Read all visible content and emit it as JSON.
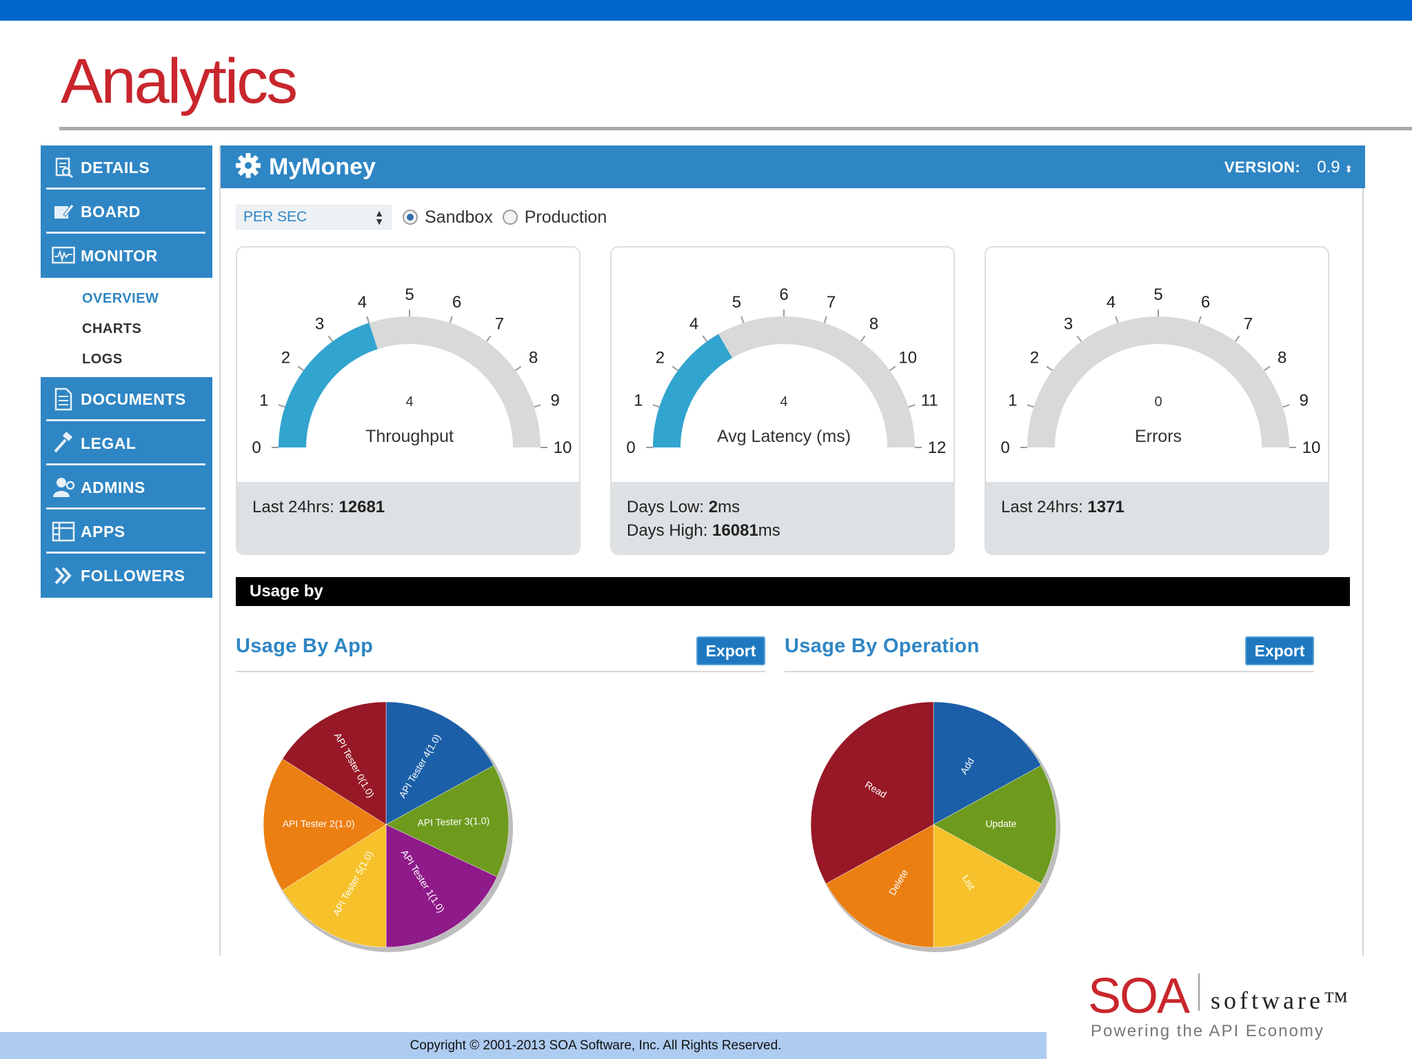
{
  "slide": {
    "title": "Analytics"
  },
  "sidebar": {
    "items": [
      {
        "label": "DETAILS",
        "icon": "details-icon"
      },
      {
        "label": "BOARD",
        "icon": "board-icon"
      },
      {
        "label": "MONITOR",
        "icon": "monitor-icon"
      },
      {
        "label": "DOCUMENTS",
        "icon": "documents-icon"
      },
      {
        "label": "LEGAL",
        "icon": "gavel-icon"
      },
      {
        "label": "ADMINS",
        "icon": "admins-icon"
      },
      {
        "label": "APPS",
        "icon": "apps-icon"
      },
      {
        "label": "FOLLOWERS",
        "icon": "chevrons-icon"
      }
    ],
    "subitems": [
      {
        "label": "OVERVIEW",
        "active": true
      },
      {
        "label": "CHARTS",
        "active": false
      },
      {
        "label": "LOGS",
        "active": false
      }
    ]
  },
  "header": {
    "app_name": "MyMoney",
    "version_label": "VERSION:",
    "version_value": "0.9"
  },
  "controls": {
    "rate_select": "PER SEC",
    "env_options": [
      {
        "label": "Sandbox",
        "selected": true
      },
      {
        "label": "Production",
        "selected": false
      }
    ]
  },
  "gauges": [
    {
      "label": "Throughput",
      "value": 4,
      "value_text": "4",
      "ticks": [
        "0",
        "1",
        "2",
        "3",
        "4",
        "5",
        "6",
        "7",
        "8",
        "9",
        "10"
      ],
      "max": 10,
      "footer": [
        {
          "prefix": "Last 24hrs: ",
          "bold": "12681",
          "suffix": ""
        }
      ]
    },
    {
      "label": "Avg Latency (ms)",
      "value": 4,
      "value_text": "4",
      "ticks": [
        "0",
        "1",
        "2",
        "4",
        "5",
        "6",
        "7",
        "8",
        "10",
        "11",
        "12"
      ],
      "max": 12,
      "footer": [
        {
          "prefix": "Days Low: ",
          "bold": "2",
          "suffix": "ms"
        },
        {
          "prefix": "Days High: ",
          "bold": "16081",
          "suffix": "ms"
        }
      ]
    },
    {
      "label": "Errors",
      "value": 0,
      "value_text": "0",
      "ticks": [
        "0",
        "1",
        "2",
        "3",
        "4",
        "5",
        "6",
        "7",
        "8",
        "9",
        "10"
      ],
      "max": 10,
      "footer": [
        {
          "prefix": "Last 24hrs: ",
          "bold": "1371",
          "suffix": ""
        }
      ]
    }
  ],
  "usage": {
    "bar_label": "Usage by",
    "by_app_title": "Usage By App",
    "by_operation_title": "Usage By Operation",
    "export_label": "Export"
  },
  "chart_data": [
    {
      "type": "pie",
      "title": "Usage By App",
      "categories": [
        "API Tester 4(1.0)",
        "API Tester 3(1.0)",
        "API Tester 1(1.0)",
        "API Tester 5(1.0)",
        "API Tester 2(1.0)",
        "API Tester 0(1.0)"
      ],
      "values": [
        17,
        15,
        18,
        16,
        18,
        16
      ],
      "colors": [
        "#1b5fa8",
        "#6e9b1e",
        "#8f1a8a",
        "#f6c12a",
        "#ec7f12",
        "#971826"
      ]
    },
    {
      "type": "pie",
      "title": "Usage By Operation",
      "categories": [
        "Add",
        "Update",
        "List",
        "Delete",
        "Read"
      ],
      "values": [
        17,
        16,
        17,
        17,
        33
      ],
      "colors": [
        "#1b5fa8",
        "#6e9b1e",
        "#f6c12a",
        "#ec7f12",
        "#971826"
      ]
    }
  ],
  "footer": {
    "copyright": "Copyright © 2001-2013 SOA Software, Inc. All Rights Reserved.",
    "logo_main": "SOA",
    "logo_sub": "software™",
    "tagline": "Powering the API Economy"
  },
  "colors": {
    "accent": "#2f86c4",
    "title_red": "#c8262c",
    "gauge_fill": "#31a4cf",
    "gauge_track": "#d9d9d9"
  }
}
